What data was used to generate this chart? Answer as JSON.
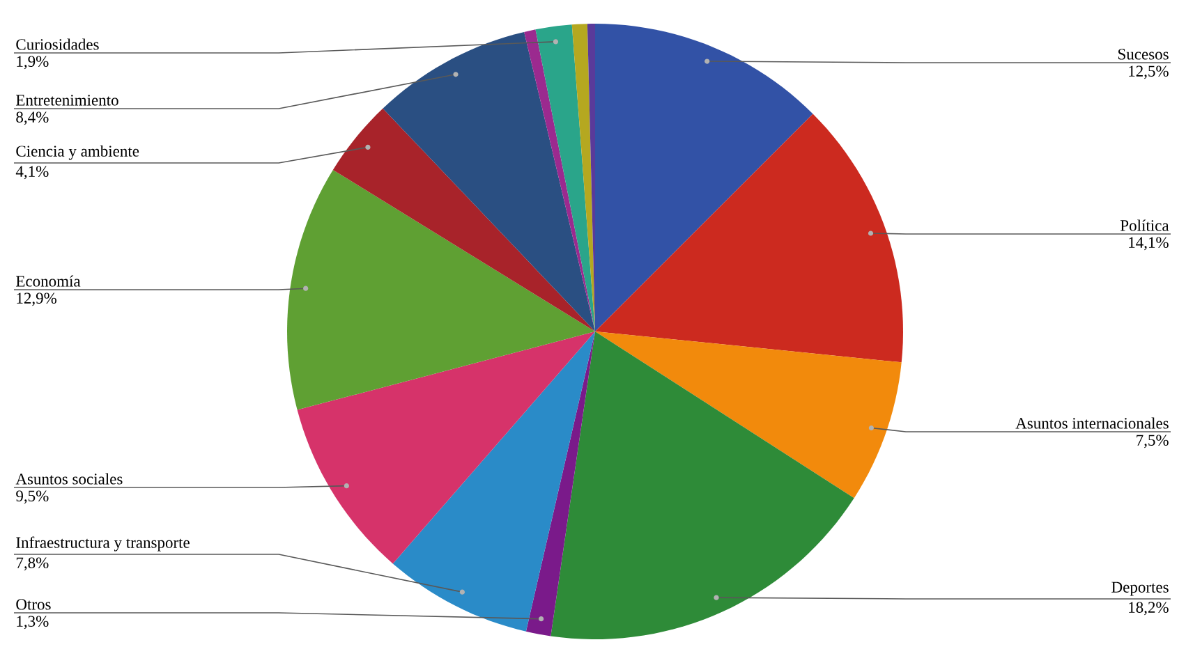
{
  "chart_data": {
    "type": "pie",
    "categories": [
      "Sucesos",
      "Política",
      "Asuntos internacionales",
      "Deportes",
      "Otros",
      "Infraestructura y transporte",
      "Asuntos sociales",
      "Economía",
      "Ciencia y ambiente",
      "Entretenimiento",
      null,
      "Curiosidades",
      null,
      null
    ],
    "values": [
      12.5,
      14.1,
      7.5,
      18.2,
      1.3,
      7.8,
      9.5,
      12.9,
      4.1,
      8.4,
      0.6,
      1.9,
      0.8,
      0.4
    ],
    "value_labels": [
      "12,5%",
      "14,1%",
      "7,5%",
      "18,2%",
      "1,3%",
      "7,8%",
      "9,5%",
      "12,9%",
      "4,1%",
      "8,4%",
      null,
      "1,9%",
      null,
      null
    ],
    "colors": [
      "#3252a6",
      "#cc2a1f",
      "#f28a0c",
      "#2e8b38",
      "#7a1a8a",
      "#2a8bc8",
      "#d6336a",
      "#5fa033",
      "#a8232a",
      "#2a4f82",
      "#9b2a8f",
      "#2aa58a",
      "#b5a820",
      "#5a3a9a"
    ]
  }
}
